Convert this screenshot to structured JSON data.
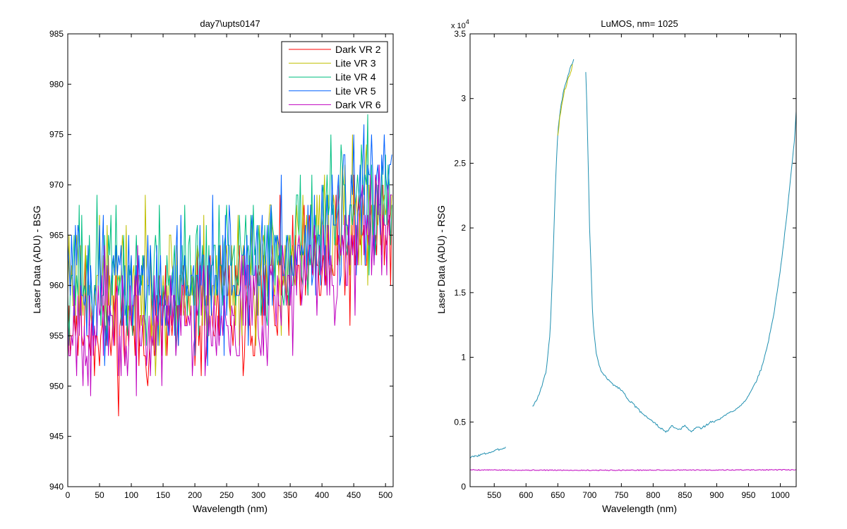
{
  "colors": {
    "background": "#ffffff",
    "axes": "#000000",
    "series": [
      "#ff0000",
      "#bfbf00",
      "#00bf80",
      "#0060ff",
      "#bf00bf"
    ],
    "right_main": "#1f8fb0"
  },
  "chart_data": [
    {
      "type": "line",
      "title": "day7\\upts0147",
      "xlabel": "Wavelength (nm)",
      "ylabel": "Laser Data (ADU) - BSG",
      "xlim": [
        0,
        512
      ],
      "ylim": [
        940,
        985
      ],
      "xticks": [
        0,
        50,
        100,
        150,
        200,
        250,
        300,
        350,
        400,
        450,
        500
      ],
      "yticks": [
        940,
        945,
        950,
        955,
        960,
        965,
        970,
        975,
        980,
        985
      ],
      "legend": {
        "position": "top-right",
        "entries": [
          "Dark VR 2",
          "Lite VR 3",
          "Lite VR 4",
          "Lite VR 5",
          "Dark VR 6"
        ]
      },
      "series": [
        {
          "name": "Dark VR 2",
          "x_start": 0,
          "x_step": 2,
          "n": 256,
          "baseline": [
            [
              0,
              957
            ],
            [
              100,
              955.5
            ],
            [
              200,
              957
            ],
            [
              300,
              958.5
            ],
            [
              350,
              960
            ],
            [
              400,
              961.5
            ],
            [
              450,
              963.5
            ],
            [
              512,
              966
            ]
          ],
          "noise": 4.2,
          "seed": 11
        },
        {
          "name": "Lite VR 3",
          "x_start": 0,
          "x_step": 2,
          "n": 256,
          "baseline": [
            [
              0,
              961
            ],
            [
              100,
              959.5
            ],
            [
              200,
              960
            ],
            [
              300,
              961.5
            ],
            [
              350,
              963
            ],
            [
              400,
              964.5
            ],
            [
              450,
              966.5
            ],
            [
              512,
              969
            ]
          ],
          "noise": 4.2,
          "seed": 23
        },
        {
          "name": "Lite VR 4",
          "x_start": 0,
          "x_step": 2,
          "n": 256,
          "baseline": [
            [
              0,
              962
            ],
            [
              100,
              960
            ],
            [
              200,
              961
            ],
            [
              300,
              962.5
            ],
            [
              350,
              964
            ],
            [
              400,
              965.5
            ],
            [
              450,
              967.5
            ],
            [
              512,
              970
            ]
          ],
          "noise": 4.2,
          "seed": 37
        },
        {
          "name": "Lite VR 5",
          "x_start": 0,
          "x_step": 2,
          "n": 256,
          "baseline": [
            [
              0,
              961
            ],
            [
              100,
              959.5
            ],
            [
              200,
              960.5
            ],
            [
              300,
              962
            ],
            [
              350,
              963.5
            ],
            [
              400,
              965
            ],
            [
              450,
              967
            ],
            [
              512,
              969.5
            ]
          ],
          "noise": 4.2,
          "seed": 51
        },
        {
          "name": "Dark VR 6",
          "x_start": 0,
          "x_step": 2,
          "n": 256,
          "baseline": [
            [
              0,
              957
            ],
            [
              100,
              955.5
            ],
            [
              200,
              957
            ],
            [
              300,
              958.5
            ],
            [
              350,
              960
            ],
            [
              400,
              961.5
            ],
            [
              450,
              963.5
            ],
            [
              512,
              966
            ]
          ],
          "noise": 4.0,
          "seed": 67
        }
      ]
    },
    {
      "type": "line",
      "title": "LuMOS, nm= 1025",
      "xlabel": "Wavelength (nm)",
      "ylabel": "Laser Data (ADU) - RSG",
      "y_multiplier": "x 10",
      "y_multiplier_exponent": "4",
      "xlim": [
        512,
        1025
      ],
      "ylim": [
        0,
        35000
      ],
      "xticks": [
        550,
        600,
        650,
        700,
        750,
        800,
        850,
        900,
        950,
        1000
      ],
      "yticks": [
        0,
        5000,
        10000,
        15000,
        20000,
        25000,
        30000,
        35000
      ],
      "ytick_labels": [
        "0",
        "0.5",
        "1",
        "1.5",
        "2",
        "2.5",
        "3",
        "3.5"
      ],
      "series": [
        {
          "segments": [
            [
              [
                512,
                2250
              ],
              [
                530,
                2480
              ],
              [
                550,
                2750
              ],
              [
                568,
                3050
              ]
            ],
            [
              [
                610,
                6200
              ],
              [
                618,
                6800
              ],
              [
                625,
                7800
              ],
              [
                632,
                9000
              ],
              [
                638,
                12000
              ],
              [
                642,
                17000
              ],
              [
                646,
                23000
              ],
              [
                650,
                27500
              ],
              [
                655,
                29500
              ],
              [
                660,
                30800
              ],
              [
                665,
                31600
              ],
              [
                670,
                32400
              ],
              [
                675,
                33000
              ]
            ],
            [
              [
                694,
                32000
              ],
              [
                696,
                29000
              ],
              [
                700,
                20000
              ],
              [
                705,
                13000
              ],
              [
                710,
                10500
              ],
              [
                715,
                9300
              ],
              [
                720,
                8800
              ],
              [
                730,
                8200
              ],
              [
                740,
                7800
              ],
              [
                750,
                7500
              ],
              [
                760,
                6800
              ],
              [
                770,
                6300
              ],
              [
                780,
                5800
              ],
              [
                790,
                5400
              ],
              [
                800,
                5000
              ],
              [
                810,
                4600
              ],
              [
                815,
                4400
              ],
              [
                820,
                4200
              ],
              [
                825,
                4450
              ],
              [
                830,
                4700
              ],
              [
                835,
                4500
              ],
              [
                840,
                4350
              ],
              [
                845,
                4550
              ],
              [
                850,
                4700
              ],
              [
                855,
                4450
              ],
              [
                860,
                4250
              ],
              [
                865,
                4450
              ],
              [
                870,
                4650
              ],
              [
                875,
                4500
              ],
              [
                880,
                4650
              ],
              [
                885,
                4800
              ],
              [
                890,
                5000
              ],
              [
                895,
                5000
              ],
              [
                900,
                5100
              ],
              [
                910,
                5400
              ],
              [
                920,
                5700
              ],
              [
                930,
                6000
              ],
              [
                940,
                6400
              ],
              [
                950,
                7000
              ],
              [
                960,
                7900
              ],
              [
                970,
                9100
              ],
              [
                980,
                10900
              ],
              [
                990,
                13400
              ],
              [
                1000,
                16700
              ],
              [
                1010,
                20800
              ],
              [
                1018,
                24800
              ],
              [
                1022,
                26600
              ],
              [
                1025,
                29000
              ]
            ]
          ],
          "noise": 80,
          "seed": 3
        },
        {
          "segments": [
            [
              [
                650,
                27200
              ],
              [
                655,
                29200
              ],
              [
                660,
                30500
              ],
              [
                665,
                31300
              ],
              [
                670,
                32000
              ],
              [
                673,
                32600
              ]
            ]
          ],
          "noise": 120,
          "seed": 9
        },
        {
          "segments": [
            [
              [
                512,
                1300
              ],
              [
                600,
                1280
              ],
              [
                700,
                1270
              ],
              [
                800,
                1280
              ],
              [
                900,
                1290
              ],
              [
                1025,
                1300
              ]
            ]
          ],
          "noise": 35,
          "seed": 5
        }
      ]
    }
  ]
}
